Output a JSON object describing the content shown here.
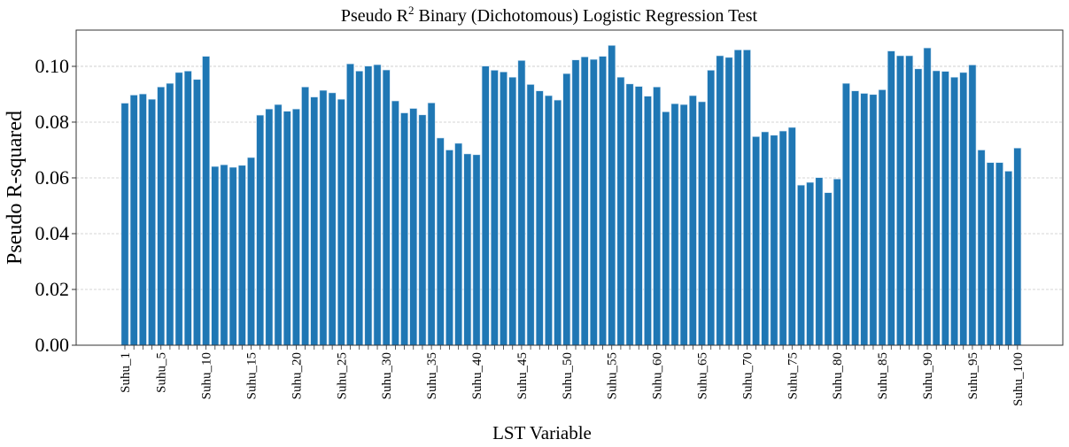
{
  "chart_data": {
    "type": "bar",
    "title": "Pseudo R2 Binary (Dichotomous) Logistic Regression Test",
    "title_parts": {
      "prefix": "Pseudo R",
      "sup": "2",
      "suffix": " Binary (Dichotomous) Logistic Regression Test"
    },
    "xlabel": "LST Variable",
    "ylabel": "Pseudo R-squared",
    "ylim": [
      0,
      0.113
    ],
    "yticks": [
      "0.00",
      "0.02",
      "0.04",
      "0.06",
      "0.08",
      "0.10"
    ],
    "ytick_values": [
      0,
      0.02,
      0.04,
      0.06,
      0.08,
      0.1
    ],
    "grid": "y dashed",
    "bar_color": "#1f77b4",
    "category_prefix": "Suhu_",
    "labeled_ticks": [
      1,
      5,
      10,
      15,
      20,
      25,
      30,
      35,
      40,
      45,
      50,
      55,
      60,
      65,
      70,
      75,
      80,
      85,
      90,
      95,
      100
    ],
    "values": [
      0.0868,
      0.0897,
      0.0901,
      0.0882,
      0.0926,
      0.0939,
      0.0978,
      0.0983,
      0.0953,
      0.1036,
      0.0641,
      0.0647,
      0.0638,
      0.0645,
      0.0673,
      0.0825,
      0.0847,
      0.0863,
      0.0839,
      0.0847,
      0.0926,
      0.089,
      0.0914,
      0.0905,
      0.0882,
      0.1009,
      0.0983,
      0.1001,
      0.1006,
      0.0987,
      0.0876,
      0.0833,
      0.0849,
      0.0826,
      0.0869,
      0.0743,
      0.07,
      0.0724,
      0.0686,
      0.0683,
      0.1001,
      0.0986,
      0.098,
      0.0961,
      0.1021,
      0.0935,
      0.0912,
      0.0895,
      0.0879,
      0.0974,
      0.1023,
      0.1034,
      0.1025,
      0.1036,
      0.1075,
      0.0961,
      0.0937,
      0.0928,
      0.0893,
      0.0926,
      0.0837,
      0.0866,
      0.0863,
      0.0895,
      0.0873,
      0.0986,
      0.1038,
      0.1032,
      0.1059,
      0.1059,
      0.0748,
      0.0765,
      0.0753,
      0.0768,
      0.0781,
      0.0574,
      0.0584,
      0.0601,
      0.0547,
      0.0596,
      0.0939,
      0.0912,
      0.0903,
      0.0899,
      0.0916,
      0.1055,
      0.1038,
      0.1038,
      0.0991,
      0.1066,
      0.0984,
      0.0982,
      0.0961,
      0.0978,
      0.1005,
      0.07,
      0.0655,
      0.0655,
      0.0624,
      0.0707
    ]
  }
}
